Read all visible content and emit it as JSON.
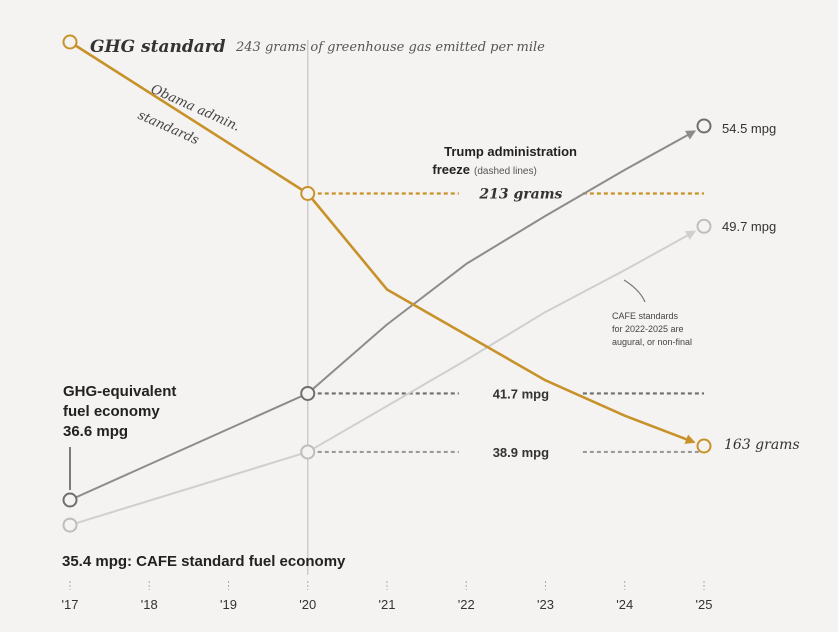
{
  "chart_data": {
    "type": "line",
    "x": [
      2017,
      2018,
      2019,
      2020,
      2021,
      2022,
      2023,
      2024,
      2025
    ],
    "x_tick_labels": [
      "'17",
      "'18",
      "'19",
      "'20",
      "'21",
      "'22",
      "'23",
      "'24",
      "'25"
    ],
    "series": [
      {
        "key": "ghg",
        "color": "#c8922a",
        "points": [
          [
            2017,
            243
          ],
          [
            2020,
            213
          ],
          [
            2021,
            194
          ],
          [
            2022,
            185
          ],
          [
            2023,
            176
          ],
          [
            2024,
            169
          ],
          [
            2025,
            163
          ]
        ],
        "freeze": {
          "from": 2020,
          "to": 2025,
          "value": 213,
          "label": "213 grams"
        }
      },
      {
        "key": "ghg_equivalent_mpg",
        "color": "#8c8c8c",
        "points": [
          [
            2017,
            36.6
          ],
          [
            2020,
            41.7
          ],
          [
            2021,
            45.0
          ],
          [
            2022,
            47.9
          ],
          [
            2023,
            50.2
          ],
          [
            2024,
            52.4
          ],
          [
            2025,
            54.5
          ]
        ],
        "freeze": {
          "from": 2020,
          "to": 2025,
          "value": 41.7,
          "label": "41.7 mpg"
        }
      },
      {
        "key": "cafe_mpg",
        "color": "#cfcfcf",
        "points": [
          [
            2017,
            35.4
          ],
          [
            2020,
            38.9
          ],
          [
            2021,
            41.1
          ],
          [
            2022,
            43.3
          ],
          [
            2023,
            45.6
          ],
          [
            2024,
            47.6
          ],
          [
            2025,
            49.7
          ]
        ],
        "freeze": {
          "from": 2020,
          "to": 2025,
          "value": 38.9,
          "label": "38.9 mpg"
        }
      }
    ],
    "vertical_marker_x": 2020
  },
  "labels": {
    "ghg_title": "GHG standard",
    "ghg_subtitle": "243 grams of greenhouse gas emitted per mile",
    "obama_line1": "Obama admin.",
    "obama_line2": "standards",
    "freeze_title_line1": "Trump administration",
    "freeze_title_line2": "freeze",
    "freeze_note": "(dashed lines)",
    "ghg_equiv_line1": "GHG-equivalent",
    "ghg_equiv_line2": "fuel economy",
    "ghg_equiv_line3": "36.6 mpg",
    "cafe_label": "35.4 mpg: CAFE standard fuel economy",
    "end_ghg": "163 grams",
    "end_equiv": "54.5 mpg",
    "end_cafe": "49.7 mpg",
    "cafe_note_line1": "CAFE standards",
    "cafe_note_line2": "for 2022-2025 are",
    "cafe_note_line3": "augural, or non-final"
  }
}
